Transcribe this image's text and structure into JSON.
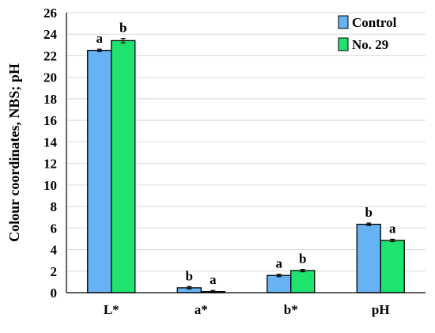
{
  "chart_data": {
    "type": "bar",
    "title": "",
    "xlabel": "",
    "ylabel": "Colour coordinates, NBS; pH",
    "ylim": [
      0,
      26
    ],
    "yticks": [
      0,
      2,
      4,
      6,
      8,
      10,
      12,
      14,
      16,
      18,
      20,
      22,
      24,
      26
    ],
    "grid": true,
    "legend_position": "top-right",
    "categories": [
      "L*",
      "a*",
      "b*",
      "pH"
    ],
    "series": [
      {
        "name": "Control",
        "color": "#66b2f2",
        "values": [
          22.5,
          0.45,
          1.6,
          6.35
        ],
        "errors": [
          0.1,
          0.05,
          0.05,
          0.05
        ],
        "significance": [
          "a",
          "b",
          "a",
          "b"
        ]
      },
      {
        "name": "No. 29",
        "color": "#1ee36e",
        "values": [
          23.4,
          0.1,
          2.05,
          4.85
        ],
        "errors": [
          0.2,
          0.02,
          0.05,
          0.05
        ],
        "significance": [
          "b",
          "a",
          "b",
          "a"
        ]
      }
    ]
  }
}
